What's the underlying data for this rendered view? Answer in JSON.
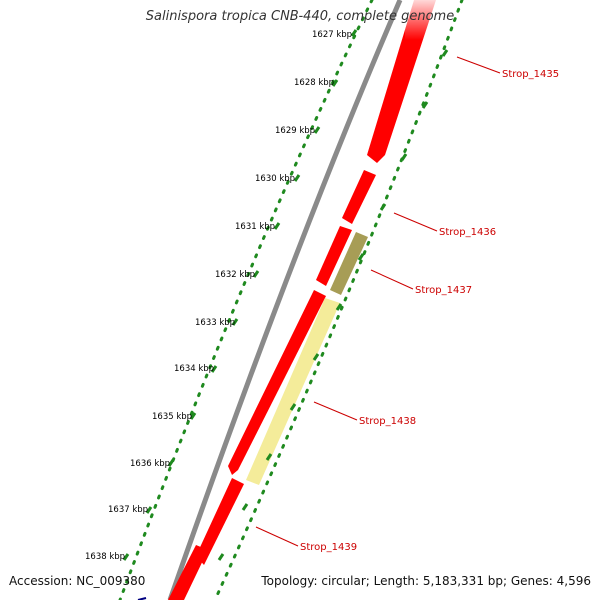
{
  "title": "Salinispora tropica CNB-440, complete genome",
  "accession_text": "Accession: NC_009380",
  "summary_text": "Topology: circular; Length: 5,183,331 bp; Genes: 4,596",
  "ruler_ticks": [
    "1627 kbp",
    "1628 kbp",
    "1629 kbp",
    "1630 kbp",
    "1631 kbp",
    "1632 kbp",
    "1633 kbp",
    "1634 kbp",
    "1635 kbp",
    "1636 kbp",
    "1637 kbp",
    "1638 kbp"
  ],
  "gene_labels": [
    "Strop_1435",
    "Strop_1436",
    "Strop_1437",
    "Strop_1438",
    "Strop_1439"
  ],
  "colors": {
    "backbone": "#8a8a8a",
    "cds": "#ff0000",
    "feature_dark": "#a79d56",
    "feature_light": "#f4ec9a",
    "ruler_dots": "#1f8a1f",
    "label": "#cc0000"
  }
}
